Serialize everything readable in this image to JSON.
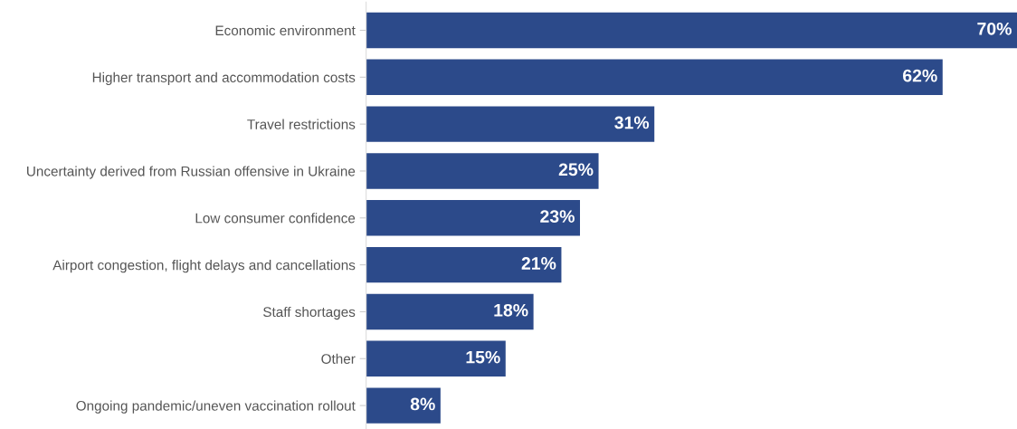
{
  "chart_data": {
    "type": "bar",
    "orientation": "horizontal",
    "data_labels": true,
    "grid": false,
    "legend": false,
    "categories": [
      "Economic environment",
      "Higher transport and accommodation costs",
      "Travel restrictions",
      "Uncertainty derived from Russian offensive in Ukraine",
      "Low consumer confidence",
      "Airport congestion, flight delays and cancellations",
      "Staff shortages",
      "Other",
      "Ongoing pandemic/uneven vaccination rollout"
    ],
    "values": [
      70,
      62,
      31,
      25,
      23,
      21,
      18,
      15,
      8
    ],
    "value_labels": [
      "70%",
      "62%",
      "31%",
      "25%",
      "23%",
      "21%",
      "18%",
      "15%",
      "8%"
    ],
    "color": "#2c4a8a"
  }
}
